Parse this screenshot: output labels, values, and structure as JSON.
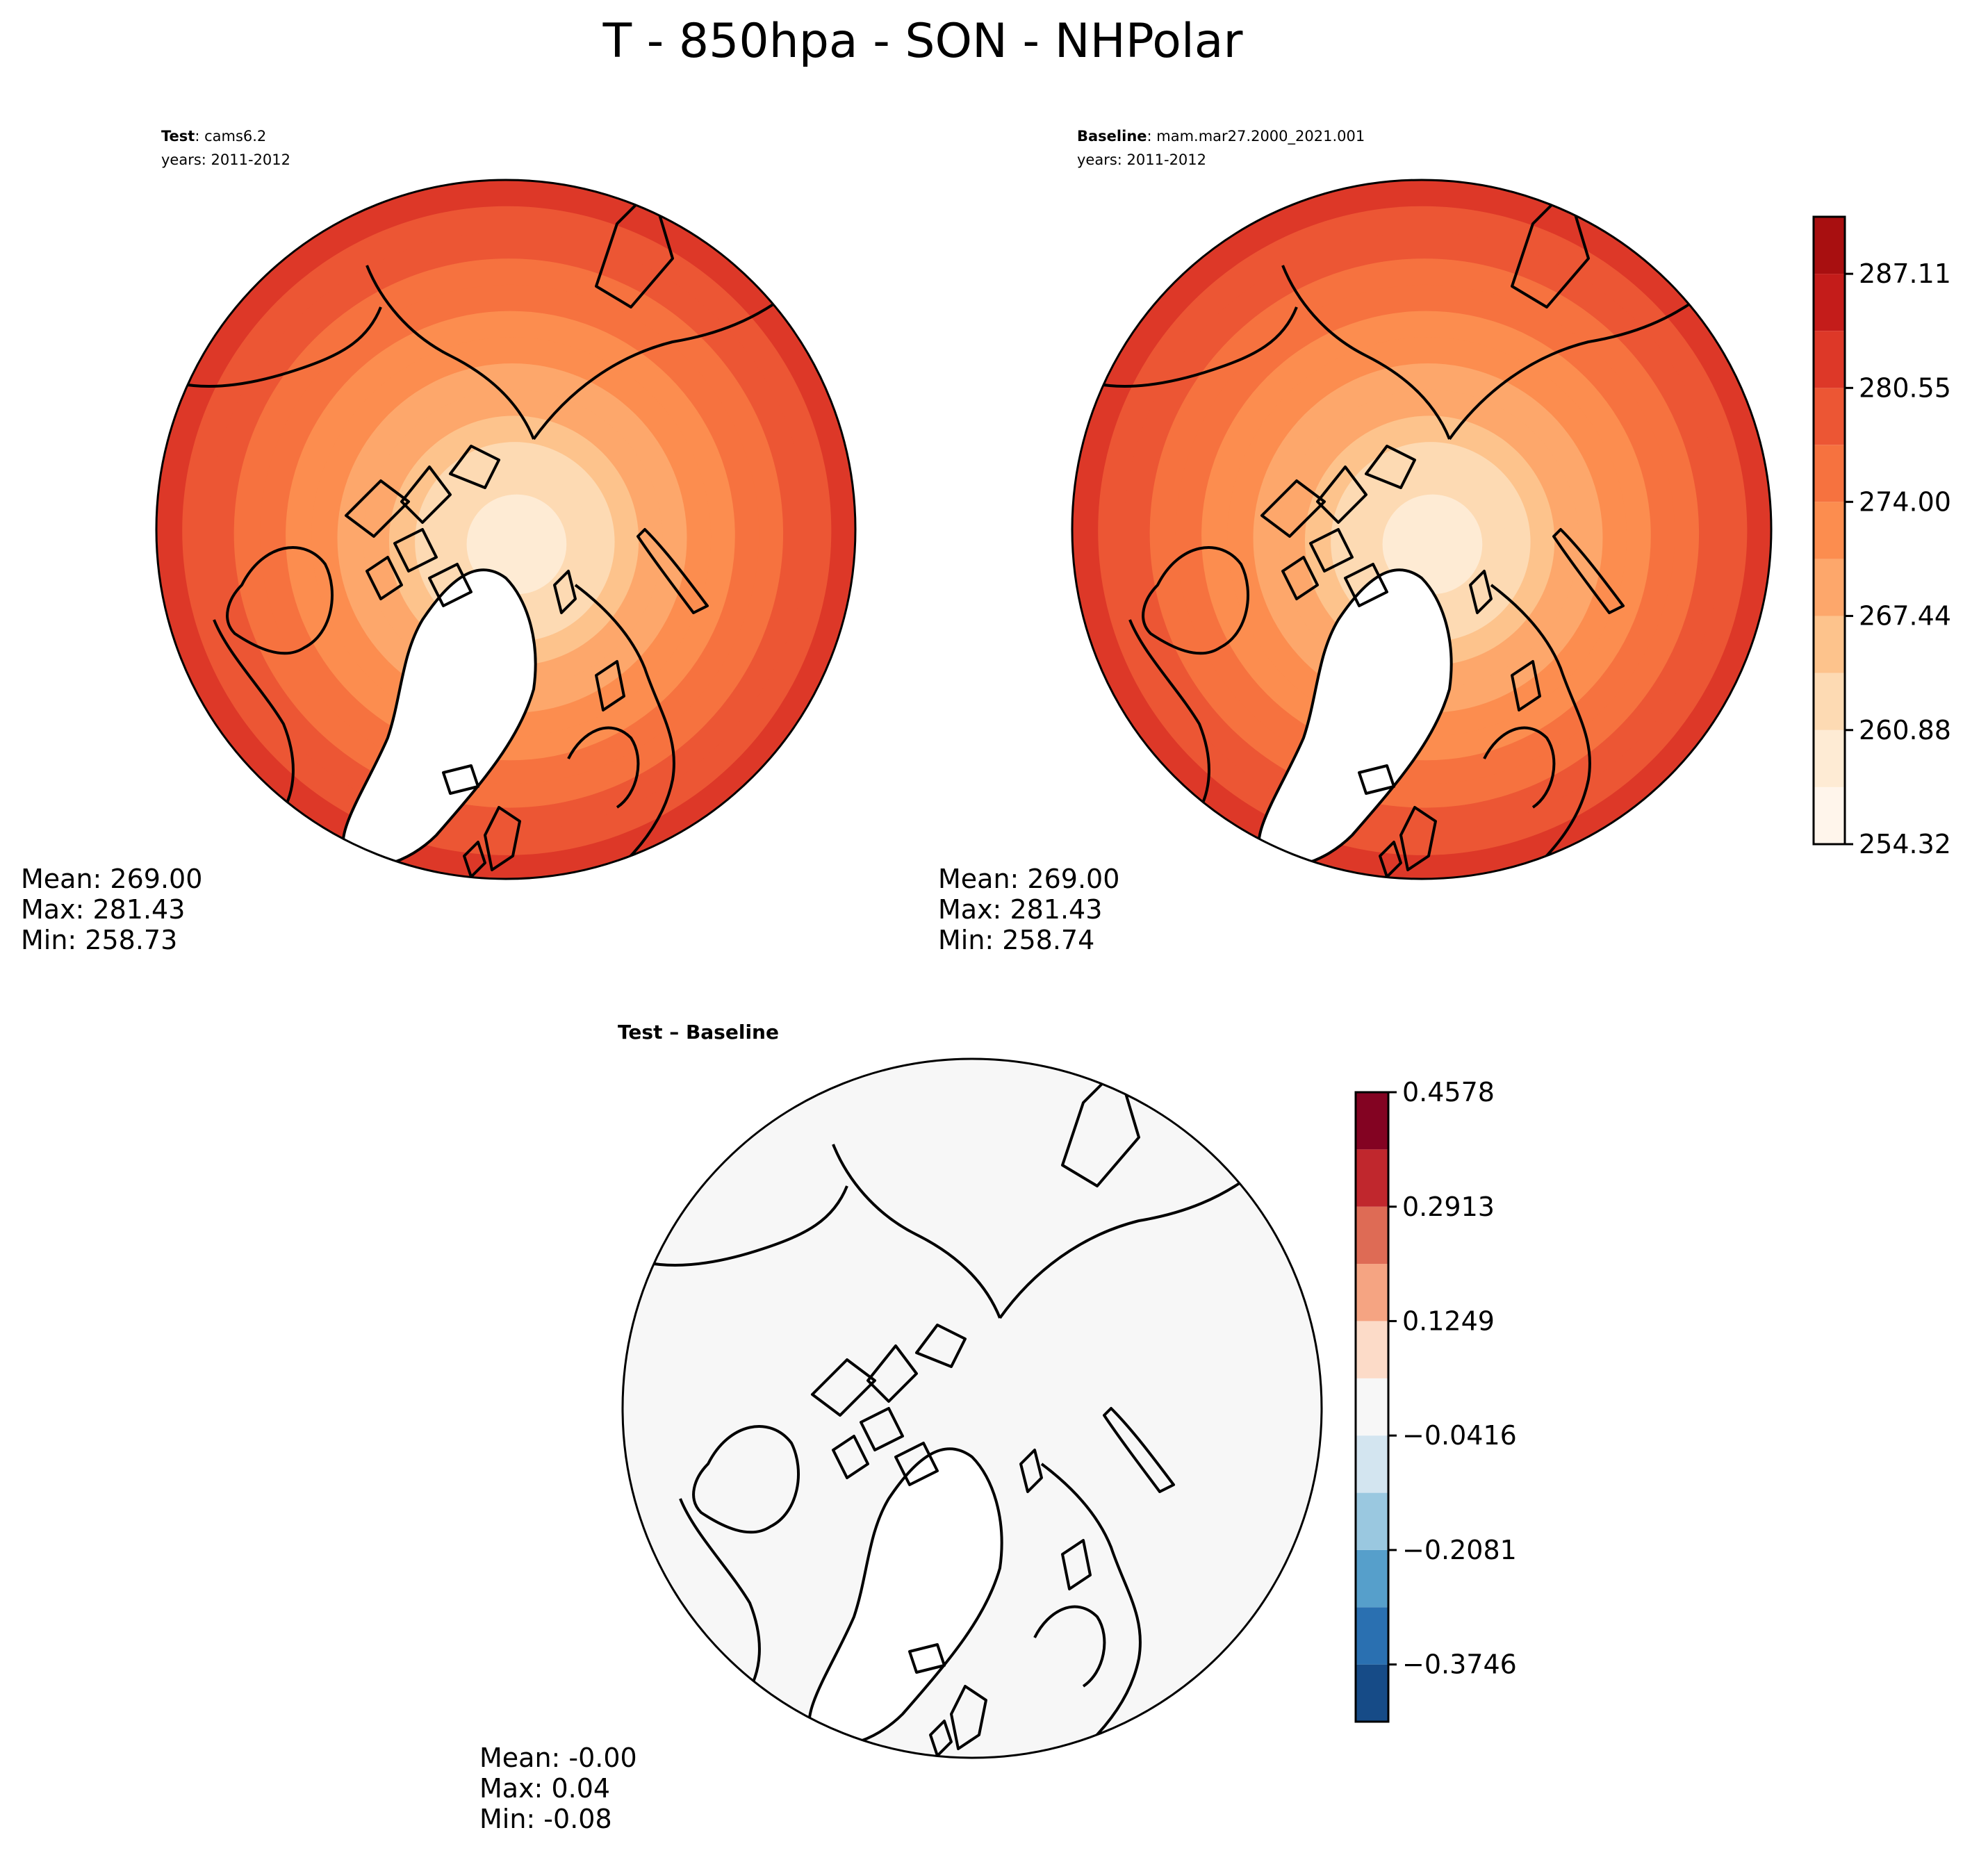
{
  "chart_data": [
    {
      "type": "heatmap",
      "panel": "test",
      "title": "T - 850hpa - SON - NHPolar",
      "label_bold": "Test",
      "label_text": ": cams6.2",
      "years_text": "years: 2011-2012",
      "stats": {
        "mean": "Mean: 269.00",
        "max": "Max: 281.43",
        "min": "Min: 258.73"
      },
      "levels": [
        254.32,
        257.6,
        260.88,
        264.16,
        267.44,
        270.72,
        274.0,
        277.28,
        280.55,
        283.83,
        287.11,
        290.39
      ],
      "ring_values": [
        258.9,
        260.2,
        261.6,
        263.4,
        265.5,
        267.6,
        269.6,
        271.4,
        273.0,
        274.6,
        276.0,
        277.5,
        279.0,
        280.8
      ]
    },
    {
      "type": "heatmap",
      "panel": "baseline",
      "label_bold": "Baseline",
      "label_text": ": mam.mar27.2000_2021.001",
      "years_text": "years: 2011-2012",
      "stats": {
        "mean": "Mean: 269.00",
        "max": "Max: 281.43",
        "min": "Min: 258.74"
      },
      "levels": [
        254.32,
        257.6,
        260.88,
        264.16,
        267.44,
        270.72,
        274.0,
        277.28,
        280.55,
        283.83,
        287.11,
        290.39
      ],
      "colorbar_ticks": [
        "254.32",
        "260.88",
        "267.44",
        "274.00",
        "280.55",
        "287.11"
      ],
      "ring_values": [
        258.9,
        260.2,
        261.6,
        263.4,
        265.5,
        267.6,
        269.6,
        271.4,
        273.0,
        274.6,
        276.0,
        277.5,
        279.0,
        280.8
      ]
    },
    {
      "type": "heatmap",
      "panel": "difference",
      "label_text": "Test – Baseline",
      "stats": {
        "mean": "Mean: -0.00",
        "max": "Max:  0.04",
        "min": "Min: -0.08"
      },
      "levels": [
        -0.4578,
        -0.3746,
        -0.2913,
        -0.2081,
        -0.1249,
        -0.0416,
        0.0416,
        0.1249,
        0.2081,
        0.2913,
        0.3746,
        0.4578
      ],
      "colorbar_ticks": [
        "−0.3746",
        "−0.2081",
        "−0.0416",
        "0.1249",
        "0.2913",
        "0.4578"
      ]
    }
  ],
  "colors": {
    "temperature": [
      "#fff5eb",
      "#feebd4",
      "#fddab3",
      "#fdc38c",
      "#fda76b",
      "#fc8d4f",
      "#f6723f",
      "#ec5634",
      "#dd3828",
      "#c41c1a",
      "#a80f10",
      "#860507"
    ],
    "difference": [
      "#164b87",
      "#2a70b1",
      "#569fcb",
      "#9ac8e0",
      "#d3e5f0",
      "#f7f7f7",
      "#fcdbc8",
      "#f5a482",
      "#de6b55",
      "#c0272d",
      "#830322"
    ]
  }
}
